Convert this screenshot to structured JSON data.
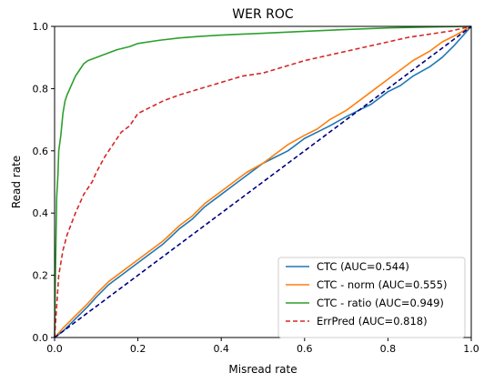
{
  "chart_data": {
    "type": "line",
    "title": "WER ROC",
    "xlabel": "Misread rate",
    "ylabel": "Read rate",
    "xlim": [
      0.0,
      1.0
    ],
    "ylim": [
      0.0,
      1.0
    ],
    "xticks": [
      "0.0",
      "0.2",
      "0.4",
      "0.6",
      "0.8",
      "1.0"
    ],
    "yticks": [
      "0.0",
      "0.2",
      "0.4",
      "0.6",
      "0.8",
      "1.0"
    ],
    "grid": false,
    "legend_position": "lower-right",
    "series": [
      {
        "name": "CTC (AUC=0.544)",
        "color": "#1f77b4",
        "style": "solid",
        "x": [
          0.0,
          0.02,
          0.05,
          0.08,
          0.1,
          0.13,
          0.16,
          0.2,
          0.23,
          0.26,
          0.3,
          0.33,
          0.36,
          0.4,
          0.43,
          0.46,
          0.5,
          0.53,
          0.56,
          0.6,
          0.63,
          0.66,
          0.7,
          0.73,
          0.76,
          0.8,
          0.83,
          0.86,
          0.9,
          0.93,
          0.96,
          1.0
        ],
        "y": [
          0.0,
          0.02,
          0.06,
          0.1,
          0.13,
          0.17,
          0.2,
          0.24,
          0.27,
          0.3,
          0.35,
          0.38,
          0.42,
          0.46,
          0.49,
          0.52,
          0.56,
          0.58,
          0.6,
          0.64,
          0.66,
          0.68,
          0.71,
          0.73,
          0.75,
          0.79,
          0.81,
          0.84,
          0.87,
          0.9,
          0.94,
          1.0
        ]
      },
      {
        "name": "CTC - norm (AUC=0.555)",
        "color": "#ff7f0e",
        "style": "solid",
        "x": [
          0.0,
          0.02,
          0.05,
          0.08,
          0.1,
          0.13,
          0.16,
          0.2,
          0.23,
          0.26,
          0.3,
          0.33,
          0.36,
          0.4,
          0.43,
          0.46,
          0.5,
          0.53,
          0.56,
          0.6,
          0.63,
          0.66,
          0.7,
          0.73,
          0.76,
          0.8,
          0.83,
          0.86,
          0.9,
          0.93,
          0.96,
          1.0
        ],
        "y": [
          0.0,
          0.03,
          0.07,
          0.11,
          0.14,
          0.18,
          0.21,
          0.25,
          0.28,
          0.31,
          0.36,
          0.39,
          0.43,
          0.47,
          0.5,
          0.53,
          0.56,
          0.59,
          0.62,
          0.65,
          0.67,
          0.7,
          0.73,
          0.76,
          0.79,
          0.83,
          0.86,
          0.89,
          0.92,
          0.95,
          0.97,
          1.0
        ]
      },
      {
        "name": "CTC - ratio (AUC=0.949)",
        "color": "#2ca02c",
        "style": "solid",
        "x": [
          0.0,
          0.002,
          0.005,
          0.008,
          0.01,
          0.015,
          0.02,
          0.025,
          0.03,
          0.04,
          0.05,
          0.06,
          0.07,
          0.08,
          0.1,
          0.12,
          0.15,
          0.18,
          0.2,
          0.25,
          0.3,
          0.35,
          0.4,
          0.5,
          0.6,
          0.7,
          0.8,
          0.9,
          1.0
        ],
        "y": [
          0.0,
          0.2,
          0.45,
          0.52,
          0.6,
          0.65,
          0.72,
          0.76,
          0.78,
          0.81,
          0.84,
          0.86,
          0.88,
          0.89,
          0.9,
          0.91,
          0.925,
          0.935,
          0.945,
          0.955,
          0.963,
          0.968,
          0.972,
          0.978,
          0.984,
          0.99,
          0.995,
          0.998,
          1.0
        ]
      },
      {
        "name": "ErrPred (AUC=0.818)",
        "color": "#d62728",
        "style": "dashed",
        "x": [
          0.0,
          0.005,
          0.01,
          0.02,
          0.03,
          0.05,
          0.07,
          0.09,
          0.1,
          0.12,
          0.14,
          0.16,
          0.18,
          0.2,
          0.23,
          0.26,
          0.3,
          0.35,
          0.4,
          0.45,
          0.5,
          0.55,
          0.6,
          0.65,
          0.7,
          0.75,
          0.8,
          0.85,
          0.9,
          0.95,
          1.0
        ],
        "y": [
          0.0,
          0.1,
          0.2,
          0.28,
          0.33,
          0.4,
          0.46,
          0.5,
          0.53,
          0.58,
          0.62,
          0.66,
          0.68,
          0.72,
          0.74,
          0.76,
          0.78,
          0.8,
          0.82,
          0.84,
          0.85,
          0.87,
          0.89,
          0.905,
          0.92,
          0.935,
          0.95,
          0.965,
          0.975,
          0.985,
          1.0
        ]
      },
      {
        "name": "",
        "color": "#000080",
        "style": "dashed",
        "x": [
          0.0,
          1.0
        ],
        "y": [
          0.0,
          1.0
        ]
      }
    ]
  }
}
